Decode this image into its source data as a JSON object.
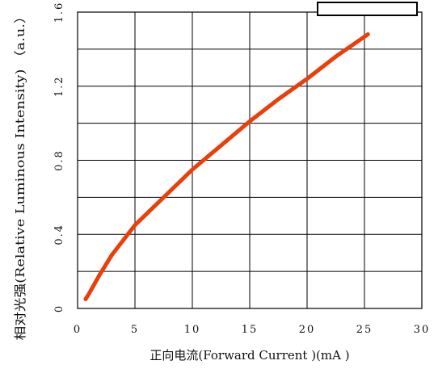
{
  "chart_data": {
    "type": "line",
    "title": "",
    "xlabel": "正向电流(Forward  Current )(mA )",
    "ylabel": "相对光强(Relative Luminous  Intensity) （a.u.）",
    "xlim": [
      0,
      30
    ],
    "ylim": [
      0,
      1.6
    ],
    "x_ticks": [
      "0",
      "5",
      "10",
      "15",
      "20",
      "25",
      "30"
    ],
    "y_ticks": [
      "0",
      "0.4",
      "0.8",
      "1.2",
      "1.6"
    ],
    "y_tick_values": [
      0,
      0.4,
      0.8,
      1.2,
      1.6
    ],
    "grid": true,
    "legend_box": "top-right",
    "series": [
      {
        "color": "#e8400c",
        "x": [
          0.7,
          1.0,
          2.0,
          3.0,
          5.0,
          7.5,
          10.0,
          12.5,
          15.0,
          17.5,
          20.0,
          22.5,
          25.3
        ],
        "y": [
          0.05,
          0.08,
          0.19,
          0.29,
          0.45,
          0.6,
          0.75,
          0.88,
          1.01,
          1.13,
          1.24,
          1.36,
          1.48
        ]
      }
    ]
  }
}
